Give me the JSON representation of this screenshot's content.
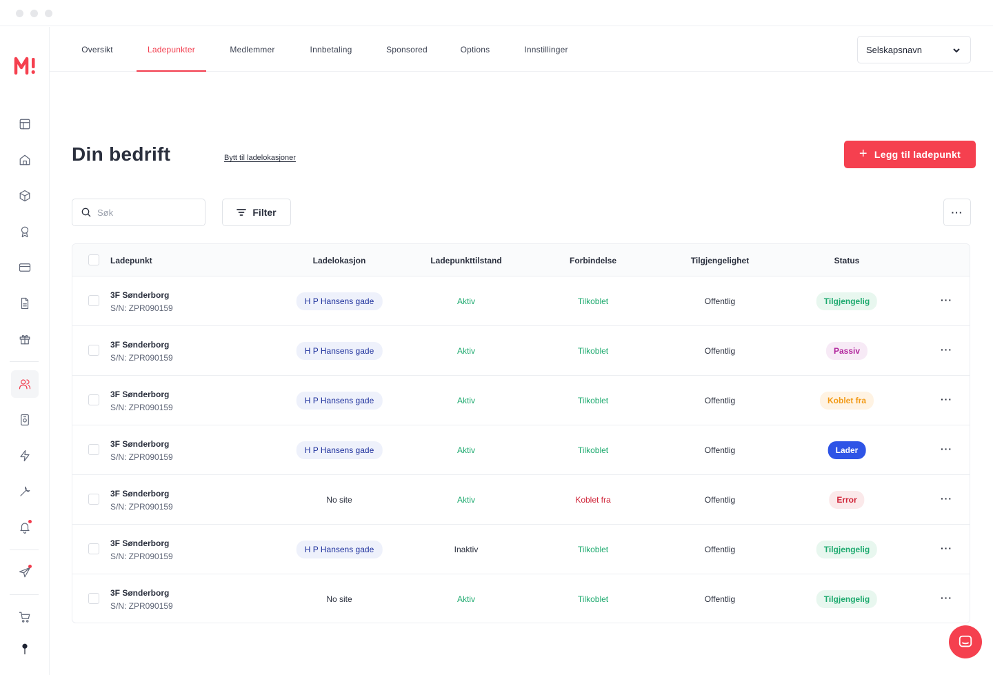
{
  "tabs": [
    {
      "label": "Oversikt",
      "active": false
    },
    {
      "label": "Ladepunkter",
      "active": true
    },
    {
      "label": "Medlemmer",
      "active": false
    },
    {
      "label": "Innbetaling",
      "active": false
    },
    {
      "label": "Sponsored",
      "active": false
    },
    {
      "label": "Options",
      "active": false
    },
    {
      "label": "Innstillinger",
      "active": false
    }
  ],
  "company_select": {
    "value": "Selskapsnavn"
  },
  "header": {
    "title": "Din bedrift",
    "switch_link": "Bytt til ladelokasjoner",
    "add_button": "Legg til ladepunkt"
  },
  "toolbar": {
    "search_placeholder": "Søk",
    "filter_label": "Filter",
    "more_label": "···"
  },
  "sidebar": {
    "icons": [
      "layout-icon",
      "home-icon",
      "cube-icon",
      "award-icon",
      "card-icon",
      "document-icon",
      "gift-icon",
      "users-icon",
      "device-icon",
      "lightning-icon",
      "wrench-icon",
      "bell-icon",
      "send-icon",
      "cart-icon",
      "avatar-icon"
    ],
    "active": "users-icon"
  },
  "table": {
    "columns": [
      "Ladepunkt",
      "Ladelokasjon",
      "Ladepunkttilstand",
      "Forbindelse",
      "Tilgjengelighet",
      "Status"
    ],
    "rows": [
      {
        "name": "3F Sønderborg",
        "serial": "S/N: ZPR090159",
        "location": "H P Hansens gade",
        "state": "Aktiv",
        "connection": "Tilkoblet",
        "availability": "Offentlig",
        "status": "Tilgjengelig",
        "status_type": "green"
      },
      {
        "name": "3F Sønderborg",
        "serial": "S/N: ZPR090159",
        "location": "H P Hansens gade",
        "state": "Aktiv",
        "connection": "Tilkoblet",
        "availability": "Offentlig",
        "status": "Passiv",
        "status_type": "purple"
      },
      {
        "name": "3F Sønderborg",
        "serial": "S/N: ZPR090159",
        "location": "H P Hansens gade",
        "state": "Aktiv",
        "connection": "Tilkoblet",
        "availability": "Offentlig",
        "status": "Koblet fra",
        "status_type": "orange"
      },
      {
        "name": "3F Sønderborg",
        "serial": "S/N: ZPR090159",
        "location": "H P Hansens gade",
        "state": "Aktiv",
        "connection": "Tilkoblet",
        "availability": "Offentlig",
        "status": "Lader",
        "status_type": "blue"
      },
      {
        "name": "3F Sønderborg",
        "serial": "S/N: ZPR090159",
        "location": "No site",
        "state": "Aktiv",
        "connection": "Koblet fra",
        "availability": "Offentlig",
        "status": "Error",
        "status_type": "red"
      },
      {
        "name": "3F Sønderborg",
        "serial": "S/N: ZPR090159",
        "location": "H P Hansens gade",
        "state": "Inaktiv",
        "connection": "Tilkoblet",
        "availability": "Offentlig",
        "status": "Tilgjengelig",
        "status_type": "green"
      },
      {
        "name": "3F Sønderborg",
        "serial": "S/N: ZPR090159",
        "location": "No site",
        "state": "Aktiv",
        "connection": "Tilkoblet",
        "availability": "Offentlig",
        "status": "Tilgjengelig",
        "status_type": "green"
      }
    ]
  },
  "colors": {
    "accent": "#f5404f",
    "link_blue": "#1c2f9c",
    "success": "#1eaa6f",
    "danger": "#d0263a"
  }
}
